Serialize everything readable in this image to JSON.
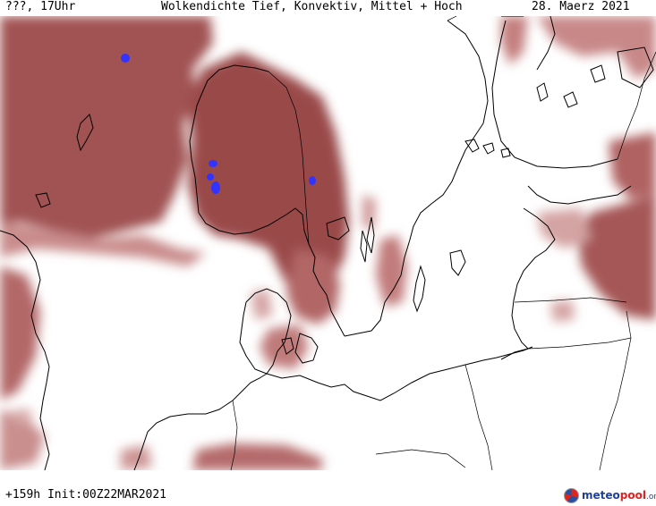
{
  "header": {
    "left": "???, 17Uhr",
    "title": "Wolkendichte  Tief, Konvektiv, Mittel + Hoch",
    "date": "28. Maerz 2021"
  },
  "footer": {
    "left": "+159h  Init:00Z22MAR2021"
  },
  "logo": {
    "part1": "meteo",
    "part2": "pool",
    "part3": ".org"
  },
  "colors": {
    "cloud_dense": "#9e4b4b",
    "cloud_medium": "#b87070",
    "cloud_light": "#d8a9a9",
    "precip_blue": "#3333ff",
    "coast": "#000000",
    "background": "#ffffff"
  }
}
